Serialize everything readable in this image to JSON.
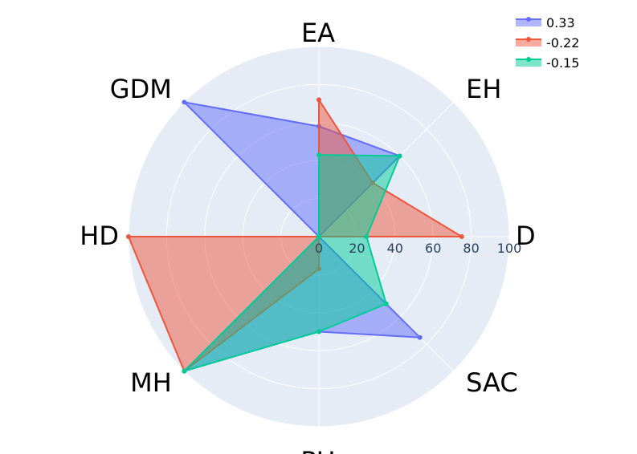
{
  "chart_data": {
    "type": "radar",
    "categories": [
      "EA",
      "EH",
      "D",
      "SAC",
      "PH",
      "MH",
      "HD",
      "GDM"
    ],
    "radial_ticks": [
      "0",
      "20",
      "40",
      "60",
      "80",
      "100"
    ],
    "rrange": [
      0,
      100
    ],
    "grid": true,
    "legend_position": "top-right",
    "series": [
      {
        "name": "0.33",
        "color": "#636efa",
        "values": [
          58,
          60,
          0,
          75,
          50,
          100,
          0,
          100
        ]
      },
      {
        "name": "-0.22",
        "color": "#ef553b",
        "values": [
          72,
          40,
          75,
          0,
          17,
          100,
          100,
          0
        ]
      },
      {
        "name": "-0.15",
        "color": "#00cc96",
        "values": [
          43,
          60,
          25,
          50,
          50,
          100,
          0,
          0
        ]
      }
    ]
  }
}
